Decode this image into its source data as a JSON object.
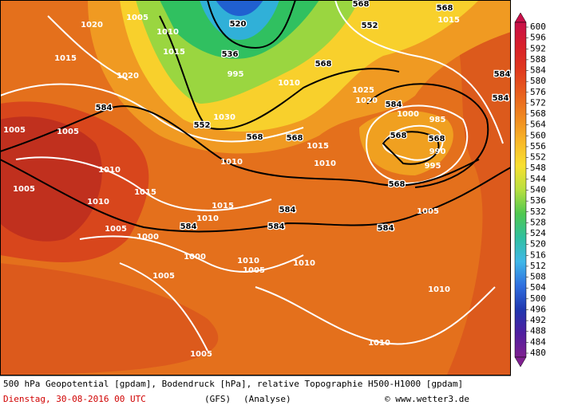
{
  "map": {
    "contour_labels": [
      "1005",
      "1020",
      "1010",
      "1015",
      "520",
      "536",
      "995",
      "552",
      "1030",
      "1020",
      "1015",
      "584",
      "1005",
      "1005",
      "1010",
      "1005",
      "1010",
      "1015",
      "1005",
      "1000",
      "584",
      "1000",
      "1010",
      "1015",
      "584",
      "584",
      "1010",
      "1005",
      "1010",
      "1005",
      "1010",
      "1010",
      "1005",
      "568",
      "568",
      "1015",
      "1010",
      "1010",
      "568",
      "568",
      "552",
      "1015",
      "1025",
      "1020",
      "584",
      "568",
      "568",
      "568",
      "985",
      "990",
      "995",
      "1000",
      "1005",
      "584",
      "584",
      "584",
      "568",
      "1010"
    ]
  },
  "colorbar": {
    "ticks": [
      600,
      596,
      592,
      588,
      584,
      580,
      576,
      572,
      568,
      564,
      560,
      556,
      552,
      548,
      544,
      540,
      536,
      532,
      528,
      524,
      520,
      516,
      512,
      508,
      504,
      500,
      496,
      492,
      488,
      484,
      480
    ],
    "stops": [
      "#c8104a",
      "#d8202a",
      "#e03a1e",
      "#e8601e",
      "#f08a20",
      "#f8b828",
      "#f8e030",
      "#b8e040",
      "#50c850",
      "#30c0a0",
      "#40b8e8",
      "#3070e0",
      "#2038b0",
      "#5020a0",
      "#802090"
    ]
  },
  "footer": {
    "line1": "500 hPa Geopotential [gpdam], Bodendruck [hPa], relative Topographie H500-H1000 [gpdam]",
    "date": "Dienstag, 30-08-2016  00 UTC",
    "model": "(GFS)",
    "run": "(Analyse)",
    "credit": "© www.wetter3.de"
  }
}
